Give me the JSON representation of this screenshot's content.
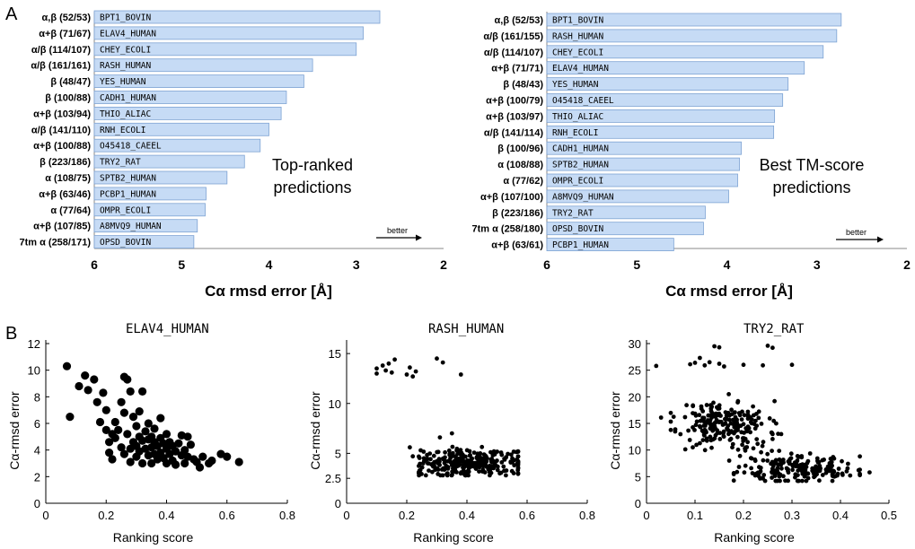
{
  "panel_labels": {
    "a": "A",
    "b": "B"
  },
  "chart_data": [
    {
      "type": "bar",
      "orientation": "horizontal",
      "xaxis_reversed": true,
      "xlim": [
        6,
        2
      ],
      "xticks": [
        6,
        5,
        4,
        3,
        2
      ],
      "xlabel": "Cα rmsd error [Å]",
      "annotation": [
        "Top-ranked",
        "predictions"
      ],
      "arrow_label": "better",
      "categories": [
        "BPT1_BOVIN",
        "ELAV4_HUMAN",
        "CHEY_ECOLI",
        "RASH_HUMAN",
        "YES_HUMAN",
        "CADH1_HUMAN",
        "THIO_ALIAC",
        "RNH_ECOLI",
        "O45418_CAEEL",
        "TRY2_RAT",
        "SPTB2_HUMAN",
        "PCBP1_HUMAN",
        "OMPR_ECOLI",
        "A8MVQ9_HUMAN",
        "OPSD_BOVIN"
      ],
      "class_labels": [
        "α,β (52/53)",
        "α+β (71/67)",
        "α/β (114/107)",
        "α/β (161/161)",
        "β (48/47)",
        "β (100/88)",
        "α+β (103/94)",
        "α/β (141/110)",
        "α+β (100/88)",
        "β (223/186)",
        "α (108/75)",
        "α+β (63/46)",
        "α (77/64)",
        "α+β (107/85)",
        "7tm α (258/171)"
      ],
      "values": [
        2.73,
        2.92,
        3.0,
        3.5,
        3.6,
        3.8,
        3.86,
        4.0,
        4.1,
        4.28,
        4.48,
        4.72,
        4.73,
        4.82,
        4.86
      ],
      "bar_color": "#c6dbf5"
    },
    {
      "type": "bar",
      "orientation": "horizontal",
      "xaxis_reversed": true,
      "xlim": [
        6,
        2
      ],
      "xticks": [
        6,
        5,
        4,
        3,
        2
      ],
      "xlabel": "Cα rmsd error [Å]",
      "annotation": [
        "Best TM-score",
        "predictions"
      ],
      "arrow_label": "better",
      "categories": [
        "BPT1_BOVIN",
        "RASH_HUMAN",
        "CHEY_ECOLI",
        "ELAV4_HUMAN",
        "YES_HUMAN",
        "O45418_CAEEL",
        "THIO_ALIAC",
        "RNH_ECOLI",
        "CADH1_HUMAN",
        "SPTB2_HUMAN",
        "OMPR_ECOLI",
        "A8MVQ9_HUMAN",
        "TRY2_RAT",
        "OPSD_BOVIN",
        "PCBP1_HUMAN"
      ],
      "class_labels": [
        "α,β (52/53)",
        "α/β (161/155)",
        "α/β (114/107)",
        "α+β (71/71)",
        "β (48/43)",
        "α+β (100/79)",
        "α+β (103/97)",
        "α/β (141/114)",
        "β (100/96)",
        "α (108/88)",
        "α (77/62)",
        "α+β (107/100)",
        "β (223/186)",
        "7tm α (258/180)",
        "α+β (63/61)"
      ],
      "values": [
        2.73,
        2.78,
        2.93,
        3.14,
        3.32,
        3.38,
        3.47,
        3.48,
        3.84,
        3.86,
        3.88,
        3.98,
        4.24,
        4.26,
        4.59
      ],
      "bar_color": "#c6dbf5"
    },
    {
      "type": "scatter",
      "title": "ELAV4_HUMAN",
      "xlabel": "Ranking score",
      "ylabel": "Cα-rmsd error",
      "xlim": [
        0,
        0.8
      ],
      "ylim": [
        0,
        12
      ],
      "xticks": [
        "0",
        "0.2",
        "0.4",
        "0.6",
        "0.8"
      ],
      "yticks": [
        "0",
        "2",
        "4",
        "6",
        "8",
        "10",
        "12"
      ],
      "point_radius": "large",
      "points": [
        [
          0.07,
          10.3
        ],
        [
          0.08,
          6.5
        ],
        [
          0.11,
          8.8
        ],
        [
          0.13,
          9.6
        ],
        [
          0.14,
          8.5
        ],
        [
          0.16,
          9.3
        ],
        [
          0.17,
          7.6
        ],
        [
          0.18,
          6.1
        ],
        [
          0.19,
          8.3
        ],
        [
          0.2,
          5.5
        ],
        [
          0.2,
          7.0
        ],
        [
          0.21,
          4.6
        ],
        [
          0.21,
          3.8
        ],
        [
          0.22,
          5.2
        ],
        [
          0.22,
          3.3
        ],
        [
          0.23,
          6.1
        ],
        [
          0.23,
          4.9
        ],
        [
          0.24,
          5.5
        ],
        [
          0.25,
          7.6
        ],
        [
          0.25,
          4.2
        ],
        [
          0.26,
          9.5
        ],
        [
          0.26,
          3.7
        ],
        [
          0.26,
          6.8
        ],
        [
          0.27,
          9.3
        ],
        [
          0.27,
          5.2
        ],
        [
          0.28,
          4.1
        ],
        [
          0.28,
          8.4
        ],
        [
          0.28,
          3.1
        ],
        [
          0.29,
          6.5
        ],
        [
          0.29,
          4.6
        ],
        [
          0.3,
          5.8
        ],
        [
          0.3,
          4.3
        ],
        [
          0.3,
          3.5
        ],
        [
          0.31,
          5.0
        ],
        [
          0.31,
          6.9
        ],
        [
          0.31,
          3.9
        ],
        [
          0.32,
          4.7
        ],
        [
          0.32,
          3.0
        ],
        [
          0.32,
          8.4
        ],
        [
          0.33,
          5.4
        ],
        [
          0.33,
          4.1
        ],
        [
          0.34,
          4.8
        ],
        [
          0.34,
          3.6
        ],
        [
          0.34,
          6.0
        ],
        [
          0.35,
          5.0
        ],
        [
          0.35,
          4.2
        ],
        [
          0.35,
          3.0
        ],
        [
          0.36,
          4.6
        ],
        [
          0.36,
          3.7
        ],
        [
          0.36,
          5.6
        ],
        [
          0.37,
          4.3
        ],
        [
          0.37,
          3.3
        ],
        [
          0.38,
          4.9
        ],
        [
          0.38,
          3.8
        ],
        [
          0.38,
          6.4
        ],
        [
          0.39,
          4.5
        ],
        [
          0.39,
          3.4
        ],
        [
          0.4,
          4.1
        ],
        [
          0.4,
          5.2
        ],
        [
          0.4,
          3.0
        ],
        [
          0.41,
          4.6
        ],
        [
          0.41,
          3.7
        ],
        [
          0.42,
          4.3
        ],
        [
          0.42,
          3.2
        ],
        [
          0.43,
          3.9
        ],
        [
          0.43,
          2.9
        ],
        [
          0.44,
          4.5
        ],
        [
          0.45,
          3.6
        ],
        [
          0.45,
          5.1
        ],
        [
          0.46,
          4.0
        ],
        [
          0.46,
          3.0
        ],
        [
          0.47,
          3.5
        ],
        [
          0.47,
          5.0
        ],
        [
          0.48,
          4.4
        ],
        [
          0.49,
          3.3
        ],
        [
          0.5,
          3.1
        ],
        [
          0.51,
          2.7
        ],
        [
          0.52,
          3.5
        ],
        [
          0.54,
          3.0
        ],
        [
          0.55,
          3.2
        ],
        [
          0.58,
          3.7
        ],
        [
          0.6,
          3.5
        ],
        [
          0.64,
          3.1
        ]
      ]
    },
    {
      "type": "scatter",
      "title": "RASH_HUMAN",
      "xlabel": "Ranking score",
      "ylabel": "Cα-rmsd error",
      "xlim": [
        0,
        0.8
      ],
      "ylim": [
        0,
        16
      ],
      "xticks": [
        "0",
        "0.2",
        "0.4",
        "0.6",
        "0.8"
      ],
      "yticks": [
        "0",
        "2.5",
        "5",
        "10",
        "15"
      ],
      "ytick_values": [
        0,
        2.5,
        5,
        10,
        15
      ],
      "point_radius": "small",
      "seed": 7,
      "explicit_points": [
        [
          0.1,
          13.5
        ],
        [
          0.1,
          13.0
        ],
        [
          0.12,
          13.8
        ],
        [
          0.13,
          13.3
        ],
        [
          0.14,
          14.0
        ],
        [
          0.15,
          13.1
        ],
        [
          0.16,
          14.4
        ],
        [
          0.2,
          12.9
        ],
        [
          0.21,
          13.6
        ],
        [
          0.22,
          12.7
        ],
        [
          0.23,
          13.2
        ],
        [
          0.3,
          14.5
        ],
        [
          0.32,
          14.1
        ],
        [
          0.38,
          12.9
        ],
        [
          0.21,
          5.6
        ],
        [
          0.31,
          6.6
        ],
        [
          0.35,
          7.0
        ],
        [
          0.22,
          4.7
        ]
      ],
      "cloud": {
        "n": 290,
        "x_center": 0.4,
        "x_spread": 0.09,
        "x_min": 0.24,
        "x_max": 0.57,
        "y_center": 4.0,
        "y_spread": 0.7,
        "y_min": 2.8,
        "y_max": 6.5
      }
    },
    {
      "type": "scatter",
      "title": "TRY2_RAT",
      "xlabel": "Ranking score",
      "ylabel": "Cα-rmsd error",
      "xlim": [
        0,
        0.5
      ],
      "ylim": [
        0,
        30
      ],
      "xticks": [
        "0",
        "0.1",
        "0.2",
        "0.3",
        "0.4",
        "0.5"
      ],
      "yticks": [
        "0",
        "5",
        "10",
        "15",
        "20",
        "25",
        "30"
      ],
      "point_radius": "small",
      "seed": 11,
      "explicit_points": [
        [
          0.02,
          25.8
        ],
        [
          0.09,
          26.1
        ],
        [
          0.1,
          26.4
        ],
        [
          0.11,
          27.3
        ],
        [
          0.12,
          25.9
        ],
        [
          0.13,
          26.5
        ],
        [
          0.14,
          29.5
        ],
        [
          0.15,
          29.3
        ],
        [
          0.15,
          26.2
        ],
        [
          0.16,
          25.7
        ],
        [
          0.2,
          26.0
        ],
        [
          0.24,
          25.9
        ],
        [
          0.25,
          29.6
        ],
        [
          0.26,
          29.2
        ],
        [
          0.3,
          26.0
        ],
        [
          0.03,
          16.1
        ],
        [
          0.46,
          5.8
        ],
        [
          0.44,
          6.3
        ],
        [
          0.42,
          5.2
        ]
      ],
      "clusters": [
        {
          "n": 200,
          "x_center": 0.16,
          "x_spread": 0.045,
          "x_min": 0.05,
          "x_max": 0.3,
          "y_center": 15.2,
          "y_spread": 2.0,
          "y_min": 9.5,
          "y_max": 20.5
        },
        {
          "n": 190,
          "x_center": 0.31,
          "x_spread": 0.06,
          "x_min": 0.18,
          "x_max": 0.44,
          "y_center": 6.5,
          "y_spread": 1.3,
          "y_min": 4.2,
          "y_max": 10.5
        },
        {
          "n": 30,
          "x_center": 0.2,
          "x_spread": 0.06,
          "x_min": 0.08,
          "x_max": 0.32,
          "y_center": 10.5,
          "y_spread": 1.5,
          "y_min": 8,
          "y_max": 13
        }
      ]
    }
  ]
}
